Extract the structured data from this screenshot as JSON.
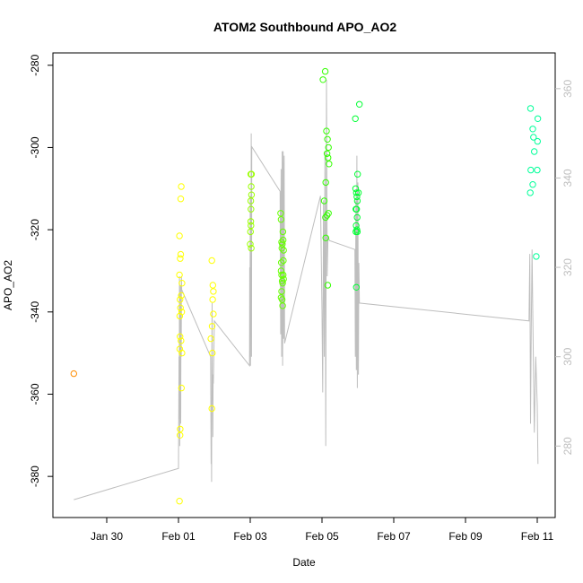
{
  "chart_data": {
    "type": "scatter",
    "title": "ATOM2 Southbound APO_AO2",
    "xlabel": "Date",
    "ylabel": "APO_AO2",
    "x_ticks": [
      {
        "label": "Jan 30",
        "date": "2017-01-30"
      },
      {
        "label": "Feb 01",
        "date": "2017-02-01"
      },
      {
        "label": "Feb 03",
        "date": "2017-02-03"
      },
      {
        "label": "Feb 05",
        "date": "2017-02-05"
      },
      {
        "label": "Feb 07",
        "date": "2017-02-07"
      },
      {
        "label": "Feb 09",
        "date": "2017-02-09"
      },
      {
        "label": "Feb 11",
        "date": "2017-02-11"
      }
    ],
    "xlim": [
      "2017-01-28T12:00",
      "2017-02-11T12:00"
    ],
    "ylim": [
      -390,
      -277
    ],
    "y_ticks": [
      -380,
      -360,
      -340,
      -320,
      -300,
      -280
    ],
    "y2_ticks": [
      280,
      300,
      320,
      340,
      360
    ],
    "y2lim": [
      264,
      368
    ],
    "grid": false,
    "series": [
      {
        "color": "#ff8c00",
        "points": [
          [
            "2017-01-29T02:00",
            -355
          ]
        ]
      },
      {
        "color": "#ffff00",
        "points": [
          [
            "2017-02-01T00:40",
            -386
          ],
          [
            "2017-02-01T01:00",
            -370
          ],
          [
            "2017-02-01T01:10",
            -368.5
          ],
          [
            "2017-02-01T00:50",
            -349
          ],
          [
            "2017-02-01T01:00",
            -346
          ],
          [
            "2017-02-01T00:50",
            -341
          ],
          [
            "2017-02-01T01:20",
            -339
          ],
          [
            "2017-02-01T01:00",
            -337
          ],
          [
            "2017-02-01T00:40",
            -331
          ],
          [
            "2017-02-01T01:30",
            -326
          ],
          [
            "2017-02-01T01:10",
            -327
          ],
          [
            "2017-02-01T00:40",
            -321.5
          ],
          [
            "2017-02-01T01:30",
            -312.5
          ],
          [
            "2017-02-01T01:50",
            -309.5
          ],
          [
            "2017-02-01T02:10",
            -340
          ],
          [
            "2017-02-01T02:20",
            -350
          ],
          [
            "2017-02-01T02:00",
            -358.5
          ],
          [
            "2017-02-01T01:40",
            -347
          ],
          [
            "2017-02-01T02:20",
            -333
          ],
          [
            "2017-02-01T01:50",
            -336
          ],
          [
            "2017-02-01T21:40",
            -346.5
          ],
          [
            "2017-02-01T22:20",
            -363.5
          ],
          [
            "2017-02-01T22:40",
            -350
          ],
          [
            "2017-02-01T22:30",
            -343.5
          ],
          [
            "2017-02-01T22:50",
            -337
          ],
          [
            "2017-02-01T23:00",
            -333.5
          ],
          [
            "2017-02-01T23:20",
            -335
          ],
          [
            "2017-02-01T22:20",
            -327.5
          ],
          [
            "2017-02-01T23:20",
            -340.5
          ]
        ]
      },
      {
        "color": "#9aff00",
        "points": [
          [
            "2017-02-03T00:00",
            -323.5
          ],
          [
            "2017-02-03T00:20",
            -318
          ],
          [
            "2017-02-03T00:30",
            -315
          ],
          [
            "2017-02-03T00:10",
            -320.5
          ],
          [
            "2017-02-03T00:40",
            -324.5
          ],
          [
            "2017-02-03T00:20",
            -306.5
          ],
          [
            "2017-02-03T00:40",
            -309.5
          ],
          [
            "2017-02-03T00:20",
            -313
          ],
          [
            "2017-02-03T00:30",
            -319
          ],
          [
            "2017-02-03T00:50",
            -311.5
          ],
          [
            "2017-02-03T00:50",
            -306.5
          ]
        ]
      },
      {
        "color": "#66ff00",
        "points": [
          [
            "2017-02-03T20:20",
            -316
          ],
          [
            "2017-02-03T20:40",
            -317.5
          ],
          [
            "2017-02-03T21:00",
            -323
          ],
          [
            "2017-02-03T21:10",
            -324.5
          ],
          [
            "2017-02-03T21:30",
            -323.5
          ],
          [
            "2017-02-03T21:50",
            -320.5
          ],
          [
            "2017-02-03T22:00",
            -322.5
          ],
          [
            "2017-02-03T22:20",
            -325
          ],
          [
            "2017-02-03T20:40",
            -330
          ],
          [
            "2017-02-03T21:00",
            -331
          ],
          [
            "2017-02-03T21:20",
            -332.5
          ],
          [
            "2017-02-03T21:40",
            -333
          ],
          [
            "2017-02-03T21:00",
            -335
          ],
          [
            "2017-02-03T21:20",
            -337
          ],
          [
            "2017-02-03T21:40",
            -338.5
          ],
          [
            "2017-02-03T20:40",
            -336.5
          ],
          [
            "2017-02-03T22:00",
            -331
          ],
          [
            "2017-02-03T22:10",
            -327.5
          ],
          [
            "2017-02-03T22:20",
            -332
          ],
          [
            "2017-02-03T20:50",
            -328
          ]
        ]
      },
      {
        "color": "#33ff00",
        "points": [
          [
            "2017-02-05T00:40",
            -283.5
          ],
          [
            "2017-02-05T02:10",
            -281.5
          ],
          [
            "2017-02-05T03:00",
            -296
          ],
          [
            "2017-02-05T03:40",
            -298
          ],
          [
            "2017-02-05T04:20",
            -300
          ],
          [
            "2017-02-05T04:00",
            -302.5
          ],
          [
            "2017-02-05T03:20",
            -301.5
          ],
          [
            "2017-02-05T04:40",
            -304
          ],
          [
            "2017-02-05T02:30",
            -308.5
          ],
          [
            "2017-02-05T01:30",
            -313
          ],
          [
            "2017-02-05T03:20",
            -316.5
          ],
          [
            "2017-02-05T02:20",
            -317
          ],
          [
            "2017-02-05T04:20",
            -316
          ],
          [
            "2017-02-05T02:30",
            -322
          ],
          [
            "2017-02-05T03:50",
            -333.5
          ]
        ]
      },
      {
        "color": "#00ff33",
        "points": [
          [
            "2017-02-05T22:20",
            -293
          ],
          [
            "2017-02-06T01:00",
            -289.5
          ],
          [
            "2017-02-05T23:50",
            -306.5
          ],
          [
            "2017-02-05T22:30",
            -310
          ],
          [
            "2017-02-05T23:00",
            -311
          ],
          [
            "2017-02-06T00:20",
            -311
          ],
          [
            "2017-02-05T23:40",
            -313
          ],
          [
            "2017-02-05T23:20",
            -312
          ],
          [
            "2017-02-05T22:40",
            -315
          ],
          [
            "2017-02-05T23:10",
            -315
          ],
          [
            "2017-02-05T23:30",
            -317
          ],
          [
            "2017-02-05T22:50",
            -319
          ],
          [
            "2017-02-05T23:20",
            -320
          ],
          [
            "2017-02-05T23:40",
            -320.5
          ],
          [
            "2017-02-05T22:40",
            -320.5
          ],
          [
            "2017-02-05T23:00",
            -334
          ]
        ]
      },
      {
        "color": "#00ff99",
        "points": [
          [
            "2017-02-10T19:30",
            -290.5
          ],
          [
            "2017-02-11T00:20",
            -293
          ],
          [
            "2017-02-10T21:00",
            -295.5
          ],
          [
            "2017-02-10T21:30",
            -297.5
          ],
          [
            "2017-02-11T00:10",
            -298.5
          ],
          [
            "2017-02-10T22:00",
            -301
          ],
          [
            "2017-02-10T19:40",
            -305.5
          ],
          [
            "2017-02-11T00:00",
            -305.5
          ],
          [
            "2017-02-10T21:00",
            -309
          ],
          [
            "2017-02-10T19:20",
            -311
          ],
          [
            "2017-02-10T23:20",
            -326.5
          ]
        ]
      }
    ],
    "right_axis_line": {
      "color": "#bebebe",
      "points": [
        [
          "2017-01-29T02:00",
          268
        ],
        [
          "2017-02-01T00:00",
          275
        ],
        [
          "2017-02-01T00:20",
          300
        ],
        [
          "2017-02-01T00:30",
          286
        ],
        [
          "2017-02-01T00:40",
          318
        ],
        [
          "2017-02-01T00:50",
          280
        ],
        [
          "2017-02-01T01:00",
          310
        ],
        [
          "2017-02-01T01:10",
          290
        ],
        [
          "2017-02-01T01:20",
          316
        ],
        [
          "2017-02-01T01:30",
          285
        ],
        [
          "2017-02-01T01:40",
          312
        ],
        [
          "2017-02-01T01:50",
          300
        ],
        [
          "2017-02-01T02:00",
          318
        ],
        [
          "2017-02-01T02:10",
          315
        ],
        [
          "2017-02-01T21:30",
          300
        ],
        [
          "2017-02-01T21:50",
          276
        ],
        [
          "2017-02-01T22:00",
          290
        ],
        [
          "2017-02-01T22:10",
          272
        ],
        [
          "2017-02-01T22:20",
          300
        ],
        [
          "2017-02-01T22:30",
          312
        ],
        [
          "2017-02-01T22:40",
          290
        ],
        [
          "2017-02-01T22:50",
          296
        ],
        [
          "2017-02-01T23:00",
          282
        ],
        [
          "2017-02-01T23:10",
          296
        ],
        [
          "2017-02-01T23:20",
          294
        ],
        [
          "2017-02-02T00:00",
          308
        ],
        [
          "2017-02-02T23:30",
          298
        ],
        [
          "2017-02-02T23:40",
          320
        ],
        [
          "2017-02-02T23:50",
          300
        ],
        [
          "2017-02-03T00:00",
          336
        ],
        [
          "2017-02-03T00:10",
          298
        ],
        [
          "2017-02-03T00:20",
          336
        ],
        [
          "2017-02-03T00:30",
          310
        ],
        [
          "2017-02-03T00:40",
          350
        ],
        [
          "2017-02-03T00:50",
          300
        ],
        [
          "2017-02-03T01:00",
          347
        ],
        [
          "2017-02-03T20:00",
          337
        ],
        [
          "2017-02-03T20:20",
          305
        ],
        [
          "2017-02-03T20:40",
          342
        ],
        [
          "2017-02-03T21:00",
          300
        ],
        [
          "2017-02-03T21:20",
          346
        ],
        [
          "2017-02-03T21:40",
          298
        ],
        [
          "2017-02-03T22:00",
          346
        ],
        [
          "2017-02-03T22:20",
          304
        ],
        [
          "2017-02-03T22:40",
          345
        ],
        [
          "2017-02-03T23:00",
          303
        ],
        [
          "2017-02-04T23:00",
          336
        ],
        [
          "2017-02-05T00:00",
          310
        ],
        [
          "2017-02-05T00:30",
          292
        ],
        [
          "2017-02-05T01:00",
          335
        ],
        [
          "2017-02-05T01:30",
          300
        ],
        [
          "2017-02-05T02:00",
          346
        ],
        [
          "2017-02-05T02:30",
          280
        ],
        [
          "2017-02-05T03:00",
          362
        ],
        [
          "2017-02-05T03:30",
          318
        ],
        [
          "2017-02-05T04:00",
          327
        ],
        [
          "2017-02-05T05:00",
          326
        ],
        [
          "2017-02-05T22:00",
          324
        ],
        [
          "2017-02-05T22:20",
          300
        ],
        [
          "2017-02-05T22:40",
          335
        ],
        [
          "2017-02-05T23:00",
          297
        ],
        [
          "2017-02-05T23:20",
          345
        ],
        [
          "2017-02-05T23:40",
          293
        ],
        [
          "2017-02-06T00:00",
          339
        ],
        [
          "2017-02-06T00:20",
          296
        ],
        [
          "2017-02-06T00:40",
          321
        ],
        [
          "2017-02-06T01:00",
          312
        ],
        [
          "2017-02-10T18:30",
          308
        ],
        [
          "2017-02-10T19:00",
          323
        ],
        [
          "2017-02-10T19:30",
          285
        ],
        [
          "2017-02-10T20:00",
          306
        ],
        [
          "2017-02-10T20:30",
          324
        ],
        [
          "2017-02-10T21:00",
          310
        ],
        [
          "2017-02-10T22:00",
          283
        ],
        [
          "2017-02-10T23:00",
          300
        ],
        [
          "2017-02-11T00:00",
          289
        ],
        [
          "2017-02-11T00:30",
          276
        ]
      ]
    }
  }
}
